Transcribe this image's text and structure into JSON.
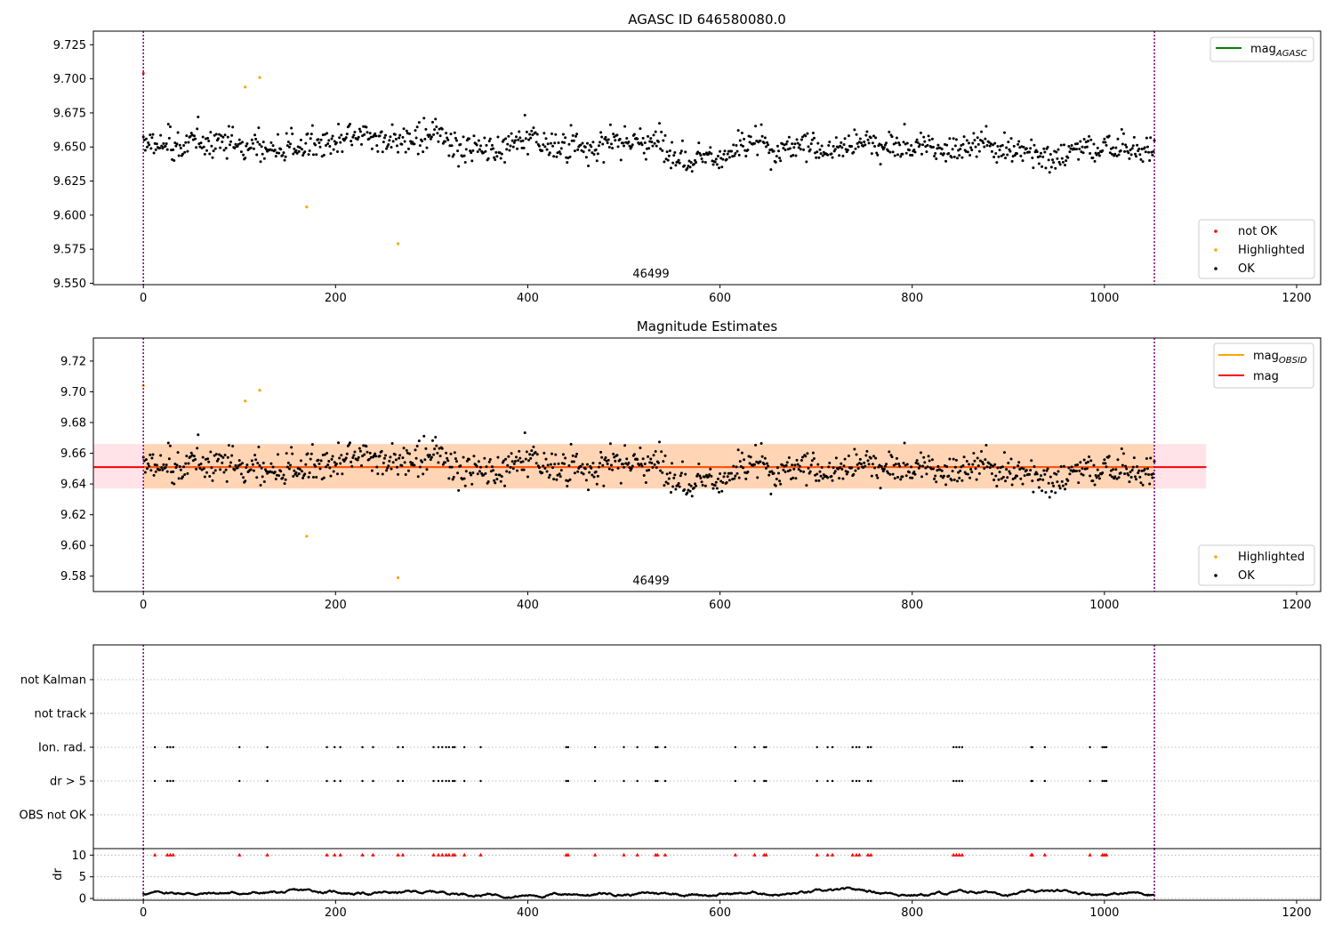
{
  "chart_data": [
    {
      "type": "scatter",
      "title": "AGASC ID 646580080.0",
      "xlim": [
        -52,
        1225
      ],
      "ylim": [
        9.549,
        9.735
      ],
      "xticks": [
        "0",
        "200",
        "400",
        "600",
        "800",
        "1000",
        "1200"
      ],
      "yticks": [
        "9.550",
        "9.575",
        "9.600",
        "9.625",
        "9.650",
        "9.675",
        "9.700",
        "9.725"
      ],
      "grid": false,
      "obsid_label": "46499",
      "obsid_label_x": 527,
      "obsid_bounds": [
        0,
        1052
      ],
      "series": [
        {
          "name": "mag_AGASC",
          "kind": "line",
          "color": "#008000"
        },
        {
          "name": "not OK",
          "kind": "points",
          "color": "#ff0000",
          "points": [
            [
              0,
              9.704
            ]
          ]
        },
        {
          "name": "Highlighted",
          "kind": "points",
          "color": "#ffa500",
          "points": [
            [
              106,
              9.694
            ],
            [
              121,
              9.701
            ],
            [
              170,
              9.606
            ],
            [
              265,
              9.579
            ]
          ]
        },
        {
          "name": "OK",
          "kind": "points",
          "color": "#000000",
          "points": "noisy-series: 1052 points, x 0..1052, baseline 9.651, spread ±0.03"
        }
      ],
      "legends": [
        {
          "position": "top-right",
          "entries": [
            {
              "label": "mag",
              "sub": "AGASC",
              "color": "#008000",
              "kind": "line"
            }
          ]
        },
        {
          "position": "bottom-right",
          "entries": [
            {
              "label": "not OK",
              "color": "#ff0000",
              "kind": "dot"
            },
            {
              "label": "Highlighted",
              "color": "#ffa500",
              "kind": "dot"
            },
            {
              "label": "OK",
              "color": "#000000",
              "kind": "dot"
            }
          ]
        }
      ]
    },
    {
      "type": "scatter",
      "title": "Magnitude Estimates",
      "xlim": [
        -52,
        1225
      ],
      "ylim": [
        9.57,
        9.735
      ],
      "xticks": [
        "0",
        "200",
        "400",
        "600",
        "800",
        "1000",
        "1200"
      ],
      "yticks": [
        "9.58",
        "9.60",
        "9.62",
        "9.64",
        "9.66",
        "9.68",
        "9.70",
        "9.72"
      ],
      "grid": false,
      "obsid_label": "46499",
      "obsid_label_x": 527,
      "obsid_bounds": [
        0,
        1052
      ],
      "mag_obsid": 9.651,
      "mag": 9.651,
      "band_obsid": [
        9.637,
        9.666
      ],
      "band_total": [
        9.637,
        9.666
      ],
      "band_total_x": [
        -52,
        1106
      ],
      "band_obsid_x": [
        0,
        1052
      ],
      "series": [
        {
          "name": "mag_OBSID",
          "kind": "line",
          "color": "#ffa500"
        },
        {
          "name": "mag",
          "kind": "line",
          "color": "#ff0000"
        },
        {
          "name": "Highlighted",
          "kind": "points",
          "color": "#ffa500",
          "points": [
            [
              0,
              9.704
            ],
            [
              106,
              9.694
            ],
            [
              121,
              9.701
            ],
            [
              170,
              9.606
            ],
            [
              265,
              9.579
            ]
          ]
        },
        {
          "name": "OK",
          "kind": "points",
          "color": "#000000",
          "points": "noisy-series: 1052 points, x 0..1052, baseline 9.651, spread ±0.03"
        }
      ],
      "legends": [
        {
          "position": "top-right",
          "entries": [
            {
              "label": "mag",
              "sub": "OBSID",
              "color": "#ffa500",
              "kind": "line"
            },
            {
              "label": "mag",
              "sub": "",
              "color": "#ff0000",
              "kind": "line"
            }
          ]
        },
        {
          "position": "bottom-right",
          "entries": [
            {
              "label": "Highlighted",
              "color": "#ffa500",
              "kind": "dot"
            },
            {
              "label": "OK",
              "color": "#000000",
              "kind": "dot"
            }
          ]
        }
      ]
    },
    {
      "type": "scatter",
      "title": "",
      "xlim": [
        -52,
        1225
      ],
      "categories": [
        "not Kalman",
        "not track",
        "Ion. rad.",
        "dr > 5",
        "OBS not OK"
      ],
      "flag_x": [
        12,
        25,
        28,
        31,
        100,
        129,
        191,
        199,
        205,
        228,
        239,
        265,
        270,
        302,
        307,
        311,
        315,
        318,
        322,
        324,
        334,
        351,
        440,
        442,
        470,
        500,
        514,
        533,
        535,
        543,
        616,
        636,
        646,
        648,
        701,
        712,
        717,
        738,
        742,
        745,
        754,
        757,
        843,
        846,
        849,
        852,
        924,
        925,
        938,
        985,
        998,
        1000,
        1002
      ],
      "flag_rows": [
        "Ion. rad.",
        "dr > 5"
      ],
      "obsid_bounds": [
        0,
        1052
      ],
      "grid": "dotted horizontal per category"
    },
    {
      "type": "scatter",
      "title": "",
      "ylabel": "dr",
      "xlim": [
        -52,
        1225
      ],
      "ylim": [
        -0.4,
        11.5
      ],
      "xticks": [
        "0",
        "200",
        "400",
        "600",
        "800",
        "1000",
        "1200"
      ],
      "yticks": [
        "0",
        "5",
        "10"
      ],
      "dr_threshold": 10,
      "dr_flag_x": [
        12,
        25,
        28,
        31,
        100,
        129,
        191,
        199,
        205,
        228,
        239,
        265,
        270,
        302,
        307,
        311,
        315,
        318,
        322,
        324,
        334,
        351,
        440,
        442,
        470,
        500,
        514,
        533,
        535,
        543,
        616,
        636,
        646,
        648,
        701,
        712,
        717,
        738,
        742,
        745,
        754,
        757,
        843,
        846,
        849,
        852,
        924,
        925,
        938,
        985,
        998,
        1000,
        1002
      ],
      "series": [
        {
          "name": "dr",
          "kind": "points",
          "color": "#000000",
          "points": "smooth wandering series 0..2.5, x 0..1052"
        },
        {
          "name": "dr > 5 flags",
          "kind": "markers",
          "color": "#ff0000",
          "y": 10
        }
      ]
    }
  ]
}
